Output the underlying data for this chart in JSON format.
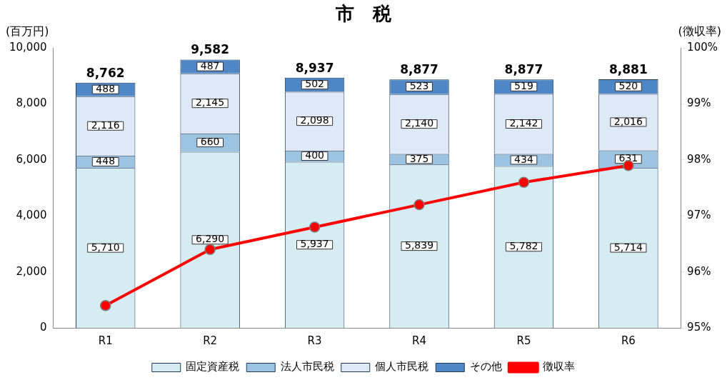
{
  "chart_data": {
    "type": "bar",
    "title": "市　税",
    "ylabel": "(百万円)",
    "y2label": "(徴収率)",
    "categories": [
      "R1",
      "R2",
      "R3",
      "R4",
      "R5",
      "R6"
    ],
    "stacked": true,
    "series": [
      {
        "name": "固定資産税",
        "color": "#d6ecf3",
        "values": [
          5710,
          6290,
          5937,
          5839,
          5782,
          5714
        ],
        "value_labels": [
          "5,710",
          "6,290",
          "5,937",
          "5,839",
          "5,782",
          "5,714"
        ]
      },
      {
        "name": "法人市民税",
        "color": "#9dc3e2",
        "values": [
          448,
          660,
          400,
          375,
          434,
          631
        ],
        "value_labels": [
          "448",
          "660",
          "400",
          "375",
          "434",
          "631"
        ]
      },
      {
        "name": "個人市民税",
        "color": "#dde9f6",
        "values": [
          2116,
          2145,
          2098,
          2140,
          2142,
          2016
        ],
        "value_labels": [
          "2,116",
          "2,145",
          "2,098",
          "2,140",
          "2,142",
          "2,016"
        ]
      },
      {
        "name": "その他",
        "color": "#4f86c6",
        "values": [
          488,
          487,
          502,
          523,
          519,
          520
        ],
        "value_labels": [
          "488",
          "487",
          "502",
          "523",
          "519",
          "520"
        ]
      },
      {
        "name": "徴収率",
        "type": "line",
        "axis": "y2",
        "color": "#ff0000",
        "marker": "circle",
        "values": [
          95.4,
          96.4,
          96.8,
          97.2,
          97.6,
          97.9
        ]
      }
    ],
    "totals": [
      "8,762",
      "9,582",
      "8,937",
      "8,877",
      "8,877",
      "8,881"
    ],
    "ylim": [
      0,
      10000
    ],
    "yticks": [
      0,
      {
        "value": 2000,
        "label": "2,000"
      },
      {
        "value": 4000,
        "label": "4,000"
      },
      {
        "value": 6000,
        "label": "6,000"
      },
      {
        "value": 8000,
        "label": "8,000"
      },
      {
        "value": 10000,
        "label": "10,000"
      }
    ],
    "y2lim": [
      95,
      100
    ],
    "y2ticks": [
      {
        "value": 95,
        "label": "95%"
      },
      {
        "value": 96,
        "label": "96%"
      },
      {
        "value": 97,
        "label": "97%"
      },
      {
        "value": 98,
        "label": "98%"
      },
      {
        "value": 99,
        "label": "99%"
      },
      {
        "value": 100,
        "label": "100%"
      }
    ],
    "legend": "bottom"
  }
}
